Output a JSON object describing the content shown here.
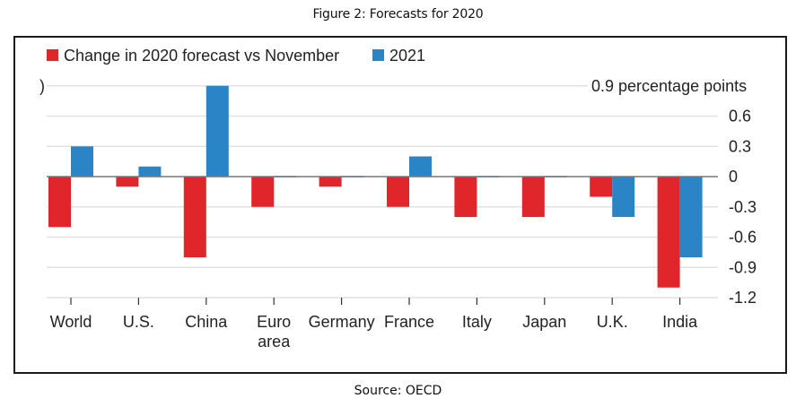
{
  "figure_title": "Figure 2: Forecasts for 2020",
  "source": "Source: OECD",
  "colors": {
    "series1": "#e0262a",
    "series2": "#2b84c6",
    "grid": "#e2e2e2",
    "zero": "#777777"
  },
  "chart_data": {
    "type": "bar",
    "title": "Figure 2: Forecasts for 2020",
    "xlabel": "",
    "ylabel": "percentage points",
    "unit_label": "0.9 percentage points",
    "categories": [
      "World",
      "U.S.",
      "China",
      "Euro area",
      "Germany",
      "France",
      "Italy",
      "Japan",
      "U.K.",
      "India"
    ],
    "category_lines": [
      [
        "World"
      ],
      [
        "U.S."
      ],
      [
        "China"
      ],
      [
        "Euro",
        "area"
      ],
      [
        "Germany"
      ],
      [
        "France"
      ],
      [
        "Italy"
      ],
      [
        "Japan"
      ],
      [
        "U.K."
      ],
      [
        "India"
      ]
    ],
    "series": [
      {
        "name": "Change in 2020 forecast vs November",
        "values": [
          -0.5,
          -0.1,
          -0.8,
          -0.3,
          -0.1,
          -0.3,
          -0.4,
          -0.4,
          -0.2,
          -1.1
        ]
      },
      {
        "name": "2021",
        "values": [
          0.3,
          0.1,
          0.9,
          0.0,
          0.0,
          0.2,
          0.0,
          0.0,
          -0.4,
          -0.8
        ]
      }
    ],
    "yticks": [
      0.9,
      0.6,
      0.3,
      0,
      -0.3,
      -0.6,
      -0.9,
      -1.2
    ],
    "ytick_labels": [
      "0.9 percentage points",
      "0.6",
      "0.3",
      "0",
      "-0.3",
      "-0.6",
      "-0.9",
      "-1.2"
    ],
    "ylim": [
      -1.2,
      0.9
    ],
    "grid": true,
    "legend": "top-left",
    "axis_side": "right"
  }
}
